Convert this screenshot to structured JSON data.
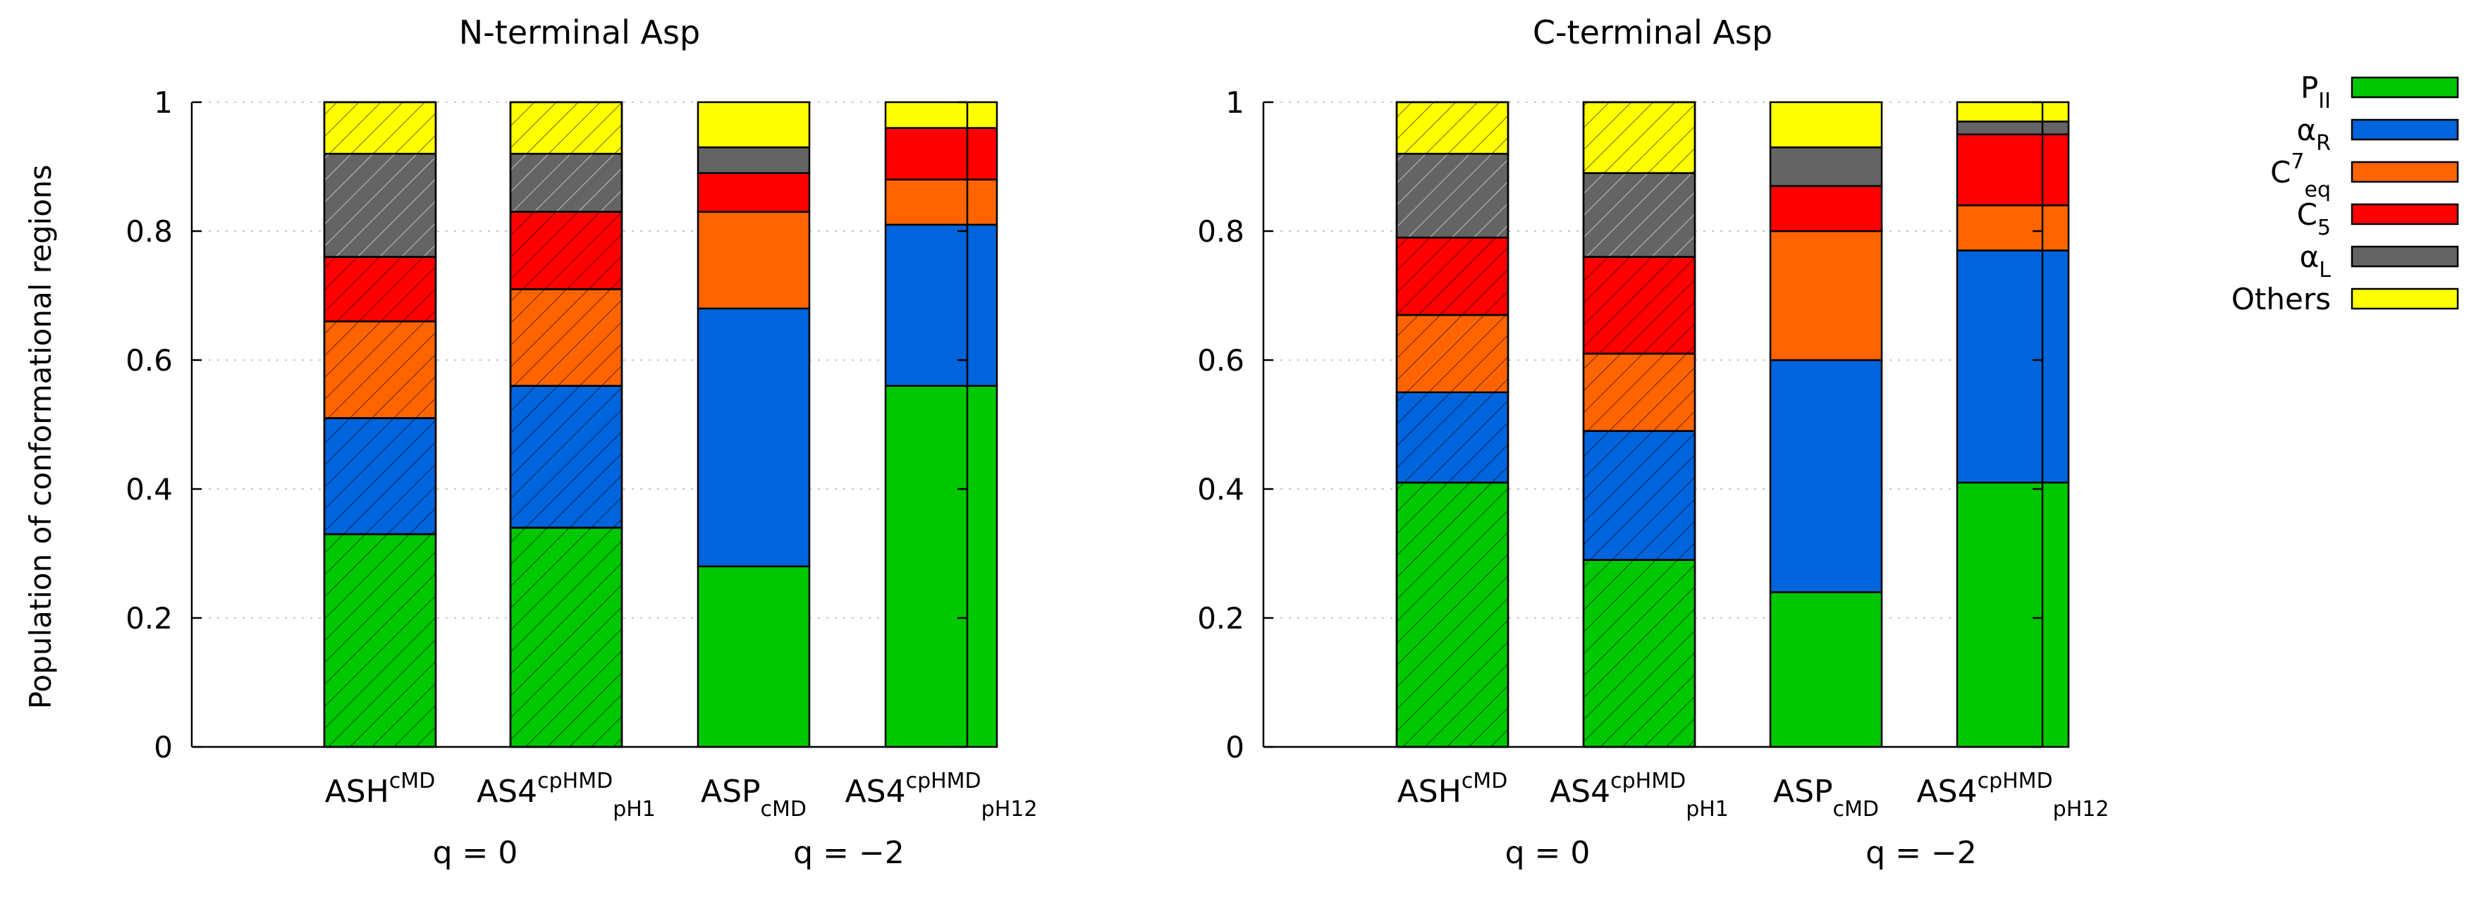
{
  "figure": {
    "ylabel": "Population of conformational regions",
    "group_labels": [
      "q = 0",
      "q = −2"
    ]
  },
  "legend": [
    {
      "key": "PII",
      "base": "P",
      "sub": "II",
      "sup": "",
      "color": "#00c800"
    },
    {
      "key": "aR",
      "base": "α",
      "sub": "R",
      "sup": "",
      "color": "#0064dc"
    },
    {
      "key": "C7eq",
      "base": "C",
      "sub": "eq",
      "sup": "7",
      "color": "#ff6400"
    },
    {
      "key": "C5",
      "base": "C",
      "sub": "5",
      "sup": "",
      "color": "#ff0000"
    },
    {
      "key": "aL",
      "base": "α",
      "sub": "L",
      "sup": "",
      "color": "#646464"
    },
    {
      "key": "Others",
      "base": "Others",
      "sub": "",
      "sup": "",
      "color": "#ffff00"
    }
  ],
  "chart_data": [
    {
      "type": "bar",
      "stacked": true,
      "title": "N-terminal Asp",
      "xlabel": "",
      "ylabel": "Population of conformational regions",
      "ylim": [
        0,
        1
      ],
      "yticks": [
        "0",
        "0.2",
        "0.4",
        "0.6",
        "0.8",
        "1"
      ],
      "grid": true,
      "categories": [
        {
          "base": "ASH",
          "sup": "cMD",
          "sub": "",
          "hatched": true
        },
        {
          "base": "AS4",
          "sup": "cpHMD",
          "sub": "pH1",
          "hatched": true
        },
        {
          "base": "ASP",
          "sup": "",
          "sub": "cMD",
          "hatched": false
        },
        {
          "base": "AS4",
          "sup": "cpHMD",
          "sub": "pH12",
          "hatched": false
        }
      ],
      "series": [
        {
          "name": "PII",
          "values": [
            0.33,
            0.34,
            0.28,
            0.56
          ]
        },
        {
          "name": "αR",
          "values": [
            0.18,
            0.22,
            0.4,
            0.25
          ]
        },
        {
          "name": "C7eq",
          "values": [
            0.15,
            0.15,
            0.15,
            0.07
          ]
        },
        {
          "name": "C5",
          "values": [
            0.1,
            0.12,
            0.06,
            0.08
          ]
        },
        {
          "name": "αL",
          "values": [
            0.16,
            0.09,
            0.04,
            0.0
          ]
        },
        {
          "name": "Others",
          "values": [
            0.08,
            0.08,
            0.07,
            0.04
          ]
        }
      ]
    },
    {
      "type": "bar",
      "stacked": true,
      "title": "C-terminal Asp",
      "xlabel": "",
      "ylabel": "",
      "ylim": [
        0,
        1
      ],
      "yticks": [
        "0",
        "0.2",
        "0.4",
        "0.6",
        "0.8",
        "1"
      ],
      "grid": true,
      "categories": [
        {
          "base": "ASH",
          "sup": "cMD",
          "sub": "",
          "hatched": true
        },
        {
          "base": "AS4",
          "sup": "cpHMD",
          "sub": "pH1",
          "hatched": true
        },
        {
          "base": "ASP",
          "sup": "",
          "sub": "cMD",
          "hatched": false
        },
        {
          "base": "AS4",
          "sup": "cpHMD",
          "sub": "pH12",
          "hatched": false
        }
      ],
      "series": [
        {
          "name": "PII",
          "values": [
            0.41,
            0.29,
            0.24,
            0.41
          ]
        },
        {
          "name": "αR",
          "values": [
            0.14,
            0.2,
            0.36,
            0.36
          ]
        },
        {
          "name": "C7eq",
          "values": [
            0.12,
            0.12,
            0.2,
            0.07
          ]
        },
        {
          "name": "C5",
          "values": [
            0.12,
            0.15,
            0.07,
            0.11
          ]
        },
        {
          "name": "αL",
          "values": [
            0.13,
            0.13,
            0.06,
            0.02
          ]
        },
        {
          "name": "Others",
          "values": [
            0.08,
            0.11,
            0.07,
            0.03
          ]
        }
      ]
    }
  ]
}
